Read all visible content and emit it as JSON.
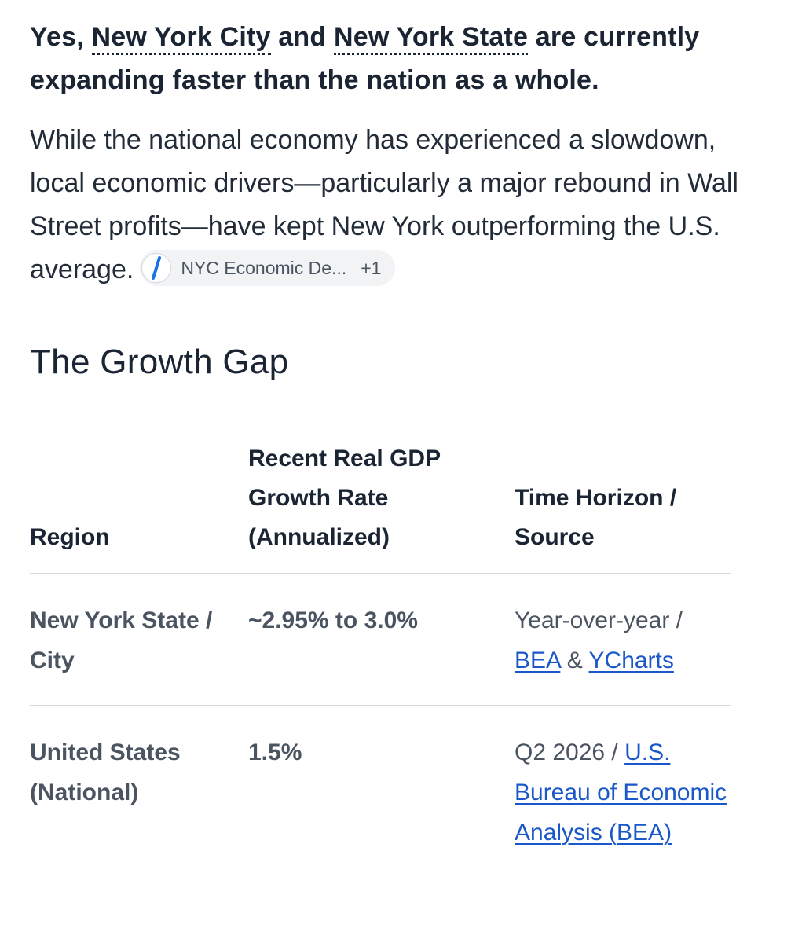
{
  "lead": {
    "prefix": "Yes, ",
    "link1": "New York City",
    "mid": " and ",
    "link2": "New York State",
    "suffix": " are currently expanding faster than the nation as a whole."
  },
  "paragraph": {
    "text": "While the national economy has experienced a slowdown, local economic drivers—particularly a major rebound in Wall Street profits—have kept New York outperforming the U.S. average.",
    "citation": {
      "label": "NYC Economic De...",
      "count": "+1",
      "icon": "source-favicon-icon"
    }
  },
  "section": {
    "title": "The Growth Gap"
  },
  "table": {
    "headers": {
      "region": "Region",
      "rate": "Recent Real GDP Growth Rate (Annualized)",
      "source": "Time Horizon / Source"
    },
    "rows": [
      {
        "region": "New York State / City",
        "rate": "~2.95% to 3.0%",
        "horizon": "Year-over-year / ",
        "link_a": "BEA",
        "joiner": " & ",
        "link_b": "YCharts"
      },
      {
        "region": "United States (National)",
        "rate": "1.5%",
        "horizon": "Q2 2026 / ",
        "link_a": "U.S. Bureau of Economic Analysis (BEA)"
      }
    ]
  },
  "colors": {
    "text": "#1a2433",
    "muted": "#4b5461",
    "link": "#1a57c9",
    "chip_bg": "#f1f3f5",
    "divider": "#d6d9dd"
  }
}
